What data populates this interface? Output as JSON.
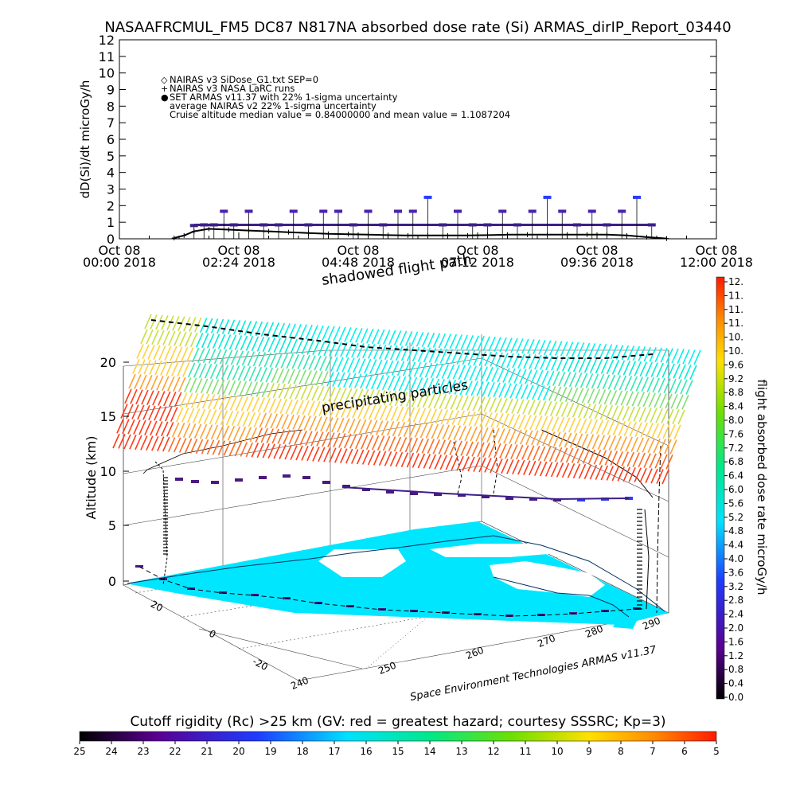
{
  "chart_data": [
    {
      "type": "scatter",
      "title": "NASAAFRCMUL_FM5 DC87 N817NA absorbed dose rate (Si) ARMAS_dirIP_Report_03440",
      "ylabel": "dD(Si)/dt microGy/h",
      "xlabel": "",
      "ylim": [
        0,
        12
      ],
      "y_ticks": [
        "0",
        "1",
        "2",
        "3",
        "4",
        "5",
        "6",
        "7",
        "8",
        "9",
        "10",
        "11",
        "12"
      ],
      "x_ticks": [
        {
          "line1": "Oct 08",
          "line2": "00:00 2018"
        },
        {
          "line1": "Oct 08",
          "line2": "02:24 2018"
        },
        {
          "line1": "Oct 08",
          "line2": "04:48 2018"
        },
        {
          "line1": "Oct 08",
          "line2": "07:12 2018"
        },
        {
          "line1": "Oct 08",
          "line2": "09:36 2018"
        },
        {
          "line1": "Oct 08",
          "line2": "12:00 2018"
        }
      ],
      "xlim_hours": [
        0,
        12
      ],
      "legend": [
        {
          "symbol": "◇",
          "text": "NAIRAS v3 SiDose_G1.txt SEP=0"
        },
        {
          "symbol": "+",
          "text": "NAIRAS v3 NASA LaRC runs"
        },
        {
          "symbol": "●",
          "text": "SET ARMAS v11.37 with 22% 1-sigma uncertainty",
          "color": "#2a3cff"
        },
        {
          "symbol": "",
          "text": "average NAIRAS v2 22% 1-sigma uncertainty"
        },
        {
          "symbol": "",
          "text": "Cruise altitude median value = 0.84000000 and mean value = 1.1087204"
        }
      ],
      "legend_placement": "top-left",
      "series": [
        {
          "name": "SET ARMAS v11.37 with 22% 1-sigma uncertainty",
          "color": "#3d1e8a",
          "x_hours": [
            1.5,
            1.7,
            1.9,
            2.1,
            2.3,
            2.6,
            2.9,
            3.2,
            3.5,
            3.8,
            4.1,
            4.4,
            4.7,
            5.0,
            5.3,
            5.6,
            5.9,
            6.2,
            6.5,
            6.8,
            7.1,
            7.4,
            7.7,
            8.0,
            8.3,
            8.6,
            8.9,
            9.2,
            9.5,
            9.8,
            10.1,
            10.4,
            10.7
          ],
          "values": [
            0.8,
            0.84,
            0.84,
            1.66,
            0.84,
            1.66,
            0.84,
            0.84,
            1.66,
            0.84,
            1.66,
            1.66,
            0.84,
            1.66,
            0.84,
            1.66,
            1.66,
            2.5,
            0.84,
            1.66,
            0.84,
            0.84,
            1.66,
            0.84,
            1.66,
            2.5,
            1.66,
            0.84,
            1.66,
            0.84,
            1.66,
            2.5,
            0.84
          ]
        },
        {
          "name": "NAIRAS v3 NASA LaRC runs",
          "color": "#000000",
          "x_hours": [
            1.1,
            1.3,
            1.5,
            1.8,
            2.2,
            2.6,
            3.0,
            3.4,
            3.8,
            4.2,
            4.6,
            5.0,
            5.4,
            5.8,
            6.2,
            6.6,
            7.0,
            7.4,
            7.8,
            8.2,
            8.6,
            9.0,
            9.4,
            9.8,
            10.2,
            10.6,
            11.0
          ],
          "values": [
            0.05,
            0.2,
            0.45,
            0.6,
            0.55,
            0.5,
            0.45,
            0.4,
            0.35,
            0.3,
            0.28,
            0.25,
            0.22,
            0.2,
            0.2,
            0.2,
            0.2,
            0.22,
            0.25,
            0.25,
            0.25,
            0.25,
            0.25,
            0.25,
            0.2,
            0.1,
            0.02
          ]
        }
      ]
    },
    {
      "type": "heatmap",
      "title": "",
      "zlabel": "Altitude (km)",
      "z_ticks": [
        "0",
        "5",
        "10",
        "15",
        "20"
      ],
      "lat_ticks": [
        "20",
        "0",
        "-20"
      ],
      "lon_ticks": [
        "240",
        "250",
        "260",
        "270",
        "280",
        "290"
      ],
      "annotations": [
        "shadowed flight path",
        "precipitating particles"
      ],
      "credit": "Space Environment Technologies ARMAS v11.37"
    }
  ],
  "right_colorbar": {
    "label": "flight absorbed dose rate microGy/h",
    "ticks": [
      "0.0",
      "0.4",
      "0.8",
      "1.2",
      "1.6",
      "2.0",
      "2.4",
      "2.8",
      "3.2",
      "3.6",
      "4.0",
      "4.4",
      "4.8",
      "5.2",
      "5.6",
      "6.0",
      "6.4",
      "6.8",
      "7.2",
      "7.6",
      "8.0",
      "8.4",
      "8.8",
      "9.2",
      "9.6",
      "10.",
      "10.",
      "11.",
      "11.",
      "11.",
      "12."
    ]
  },
  "bottom_colorbar": {
    "label": "Cutoff rigidity (Rc) >25 km (GV: red = greatest hazard; courtesy SSSRC; Kp=3)",
    "ticks": [
      "25",
      "24",
      "23",
      "22",
      "21",
      "20",
      "19",
      "18",
      "17",
      "16",
      "15",
      "14",
      "13",
      "12",
      "11",
      "10",
      "9",
      "8",
      "7",
      "6",
      "5"
    ]
  }
}
